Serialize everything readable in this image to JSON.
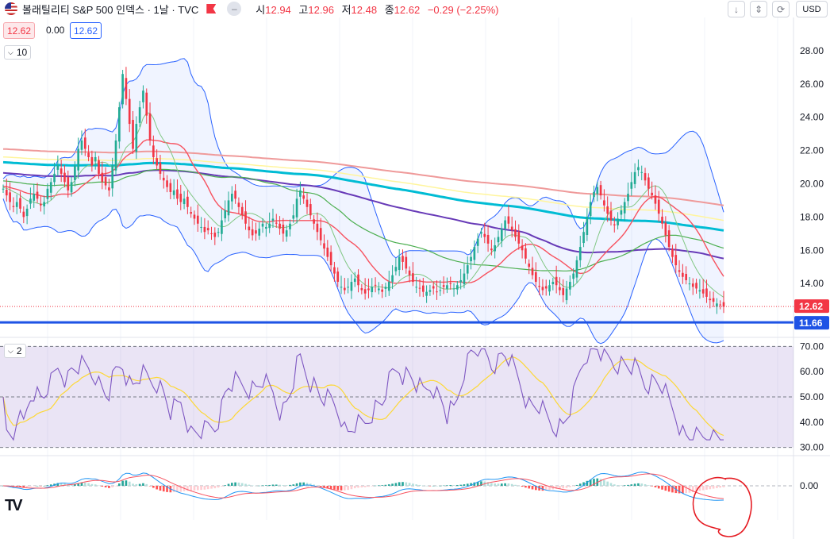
{
  "header": {
    "symbol_title": "볼래틸리티 S&P 500 인덱스 · 1날 · TVC",
    "ohlc": [
      {
        "label": "시",
        "value": "12.94"
      },
      {
        "label": "고",
        "value": "12.96"
      },
      {
        "label": "저",
        "value": "12.48"
      },
      {
        "label": "종",
        "value": "12.62"
      }
    ],
    "change": "−0.29 (−2.25%)",
    "currency": "USD",
    "price_box": "12.62",
    "spread": "0.00",
    "ask_box": "12.62",
    "ma_chip": "10",
    "rsi_chip": "2"
  },
  "colors": {
    "up": "#22ab94",
    "down": "#f23645",
    "bb": "#2962ff",
    "ma20": "#f7525f",
    "ma60": "#4caf50",
    "ma120": "#673ab7",
    "ma200": "#00bcd4",
    "ma300": "#ef9a9a",
    "ma240": "#fff59d",
    "rsi": "#7e57c2",
    "rsi_ma": "#fdd835",
    "hline": "#1e53e5"
  },
  "chart_data": [
    {
      "type": "candlestick",
      "title": "",
      "ylim": [
        11.0,
        30.0
      ],
      "yticks": [
        "28.00",
        "26.00",
        "24.00",
        "22.00",
        "20.00",
        "18.00",
        "16.00",
        "14.00"
      ],
      "current_price_label": "12.62",
      "horizontal_line_label": "11.66",
      "current_price": 12.62,
      "horizontal_line": 11.66,
      "close_series": [
        19.7,
        19.3,
        18.9,
        18.6,
        18.9,
        18.5,
        18.0,
        18.5,
        19.1,
        19.4,
        19.1,
        18.7,
        18.9,
        19.7,
        20.1,
        20.6,
        21.1,
        20.6,
        20.1,
        19.6,
        20.1,
        21.1,
        22.1,
        22.6,
        22.1,
        21.6,
        21.1,
        21.6,
        20.6,
        20.1,
        19.9,
        19.6,
        21.1,
        22.6,
        24.6,
        26.6,
        25.1,
        23.6,
        22.1,
        23.6,
        24.6,
        25.6,
        24.1,
        22.6,
        21.6,
        21.1,
        20.6,
        20.2,
        19.8,
        19.5,
        19.6,
        19.1,
        18.9,
        19.1,
        18.6,
        18.2,
        17.9,
        17.6,
        17.4,
        17.1,
        17.2,
        17.0,
        16.8,
        17.1,
        17.8,
        18.4,
        19.0,
        19.4,
        19.1,
        18.6,
        18.1,
        17.6,
        17.2,
        16.9,
        17.0,
        17.3,
        17.6,
        17.4,
        17.6,
        17.9,
        17.6,
        17.3,
        17.0,
        17.2,
        17.6,
        18.1,
        19.1,
        19.6,
        19.1,
        18.6,
        18.1,
        17.6,
        17.1,
        16.6,
        16.1,
        15.6,
        15.1,
        14.6,
        14.1,
        13.8,
        13.6,
        13.8,
        14.1,
        14.3,
        13.9,
        13.6,
        13.4,
        13.6,
        13.8,
        13.9,
        13.7,
        13.5,
        13.8,
        14.1,
        14.5,
        15.0,
        15.6,
        15.3,
        14.9,
        14.5,
        14.1,
        13.8,
        13.7,
        13.5,
        13.5,
        13.6,
        13.7,
        13.5,
        13.6,
        13.8,
        13.9,
        14.0,
        13.7,
        13.9,
        14.2,
        14.6,
        15.1,
        15.6,
        16.2,
        16.7,
        17.1,
        16.8,
        16.4,
        16.0,
        16.3,
        16.8,
        17.3,
        17.8,
        17.6,
        17.2,
        16.8,
        16.4,
        16.0,
        15.5,
        15.0,
        14.5,
        14.1,
        13.8,
        13.6,
        13.7,
        13.9,
        14.1,
        13.9,
        13.6,
        13.3,
        13.7,
        14.1,
        14.6,
        15.4,
        16.2,
        17.1,
        18.0,
        18.9,
        19.5,
        19.8,
        19.3,
        18.7,
        18.2,
        17.8,
        17.5,
        17.9,
        18.4,
        18.9,
        19.4,
        20.1,
        20.7,
        21.0,
        20.7,
        20.2,
        19.7,
        19.3,
        18.8,
        18.2,
        17.6,
        16.9,
        16.2,
        15.6,
        15.1,
        14.7,
        14.4,
        14.2,
        14.0,
        13.8,
        13.7,
        13.6,
        13.4,
        13.2,
        13.0,
        12.9,
        12.8,
        12.7,
        12.6
      ],
      "rsi_ylim": [
        28,
        72
      ],
      "rsi_yticks": [
        "70.00",
        "60.00",
        "50.00",
        "40.00",
        "30.00"
      ],
      "macd_ytick": "0.00"
    }
  ]
}
